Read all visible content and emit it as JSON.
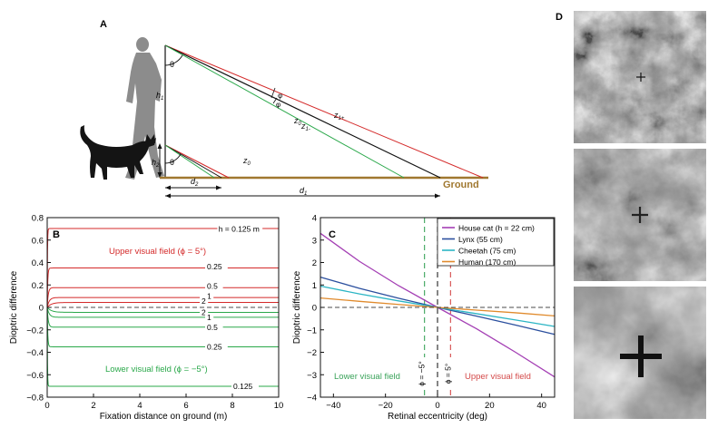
{
  "panel_labels": {
    "a": "A",
    "b": "B",
    "c": "C",
    "d": "D"
  },
  "diagram": {
    "theta": "θ",
    "phi_top": "φ",
    "phi_bottom": "φ",
    "h1": "h",
    "h1_sub": "1",
    "h2": "h",
    "h2_sub": "2",
    "z1plus": "z",
    "z1plus_sub": "1+",
    "z0": "z",
    "z0_sub": "0",
    "z1minus": "z",
    "z1minus_sub": "1-",
    "z0_cat": "z",
    "z0_cat_sub": "0",
    "d1": "d",
    "d1_sub": "1",
    "d2": "d",
    "d2_sub": "2",
    "ground": "Ground",
    "ground_color": "#a07830",
    "figures": [
      "human-silhouette-icon",
      "cat-silhouette-icon"
    ]
  },
  "chart_data": [
    {
      "id": "B",
      "type": "line",
      "xlabel": "Fixation distance on ground (m)",
      "ylabel": "Dioptric difference",
      "xlim": [
        0,
        10
      ],
      "ylim": [
        -0.8,
        0.8
      ],
      "xticks": [
        0,
        2,
        4,
        6,
        8,
        10
      ],
      "yticks": [
        0.8,
        0.6,
        0.4,
        0.2,
        0,
        -0.2,
        -0.4,
        -0.6,
        -0.8
      ],
      "ytick_labels": [
        "0.8",
        "0.6",
        "0.4",
        "0.2",
        "0",
        "−0.2",
        "−0.4",
        "−0.6",
        "−0.8"
      ],
      "upper_label": "Upper visual field (ϕ = 5°)",
      "lower_label": "Lower visual field (ϕ = −5°)",
      "h_label_prefix": "h = ",
      "h_label_units": " m",
      "upper_color": "#d42a2a",
      "lower_color": "#2aa84a",
      "upper_series": [
        {
          "h": 0.125,
          "label": "0.125",
          "plateau": 0.703
        },
        {
          "h": 0.25,
          "label": "0.25",
          "plateau": 0.351
        },
        {
          "h": 0.5,
          "label": "0.5",
          "plateau": 0.176
        },
        {
          "h": 1,
          "label": "1",
          "plateau": 0.088
        },
        {
          "h": 2,
          "label": "2",
          "plateau": 0.044
        }
      ],
      "lower_series": [
        {
          "h": 2,
          "label": "2",
          "plateau": -0.044
        },
        {
          "h": 1,
          "label": "1",
          "plateau": -0.088
        },
        {
          "h": 0.5,
          "label": "0.5",
          "plateau": -0.176
        },
        {
          "h": 0.25,
          "label": "0.25",
          "plateau": -0.351
        },
        {
          "h": 0.125,
          "label": "0.125",
          "plateau": -0.703
        }
      ]
    },
    {
      "id": "C",
      "type": "line",
      "xlabel": "Retinal eccentricity (deg)",
      "ylabel": "Dioptric difference",
      "xlim": [
        -45,
        45
      ],
      "ylim": [
        -4,
        4
      ],
      "xticks": [
        -40,
        -20,
        0,
        20,
        40
      ],
      "xtick_labels": [
        "−40",
        "−20",
        "0",
        "20",
        "40"
      ],
      "yticks": [
        4,
        3,
        2,
        1,
        0,
        -1,
        -2,
        -3,
        -4
      ],
      "ytick_labels": [
        "4",
        "3",
        "2",
        "1",
        "0",
        "−1",
        "−2",
        "−3",
        "−4"
      ],
      "legend_position": "top-right",
      "series": [
        {
          "name": "House cat (h = 22 cm)",
          "color": "#a43fb4",
          "x": [
            -45,
            -30,
            -15,
            0,
            15,
            30,
            45
          ],
          "y": [
            3.3,
            2.05,
            0.97,
            0,
            -0.95,
            -2.0,
            -3.1
          ]
        },
        {
          "name": "Lynx (55 cm)",
          "color": "#2b4f9e",
          "x": [
            -45,
            -30,
            -15,
            0,
            15,
            30,
            45
          ],
          "y": [
            1.35,
            0.85,
            0.41,
            0,
            -0.39,
            -0.79,
            -1.2
          ]
        },
        {
          "name": "Cheetah (75 cm)",
          "color": "#2bb5c4",
          "x": [
            -45,
            -30,
            -15,
            0,
            15,
            30,
            45
          ],
          "y": [
            0.95,
            0.6,
            0.29,
            0,
            -0.28,
            -0.56,
            -0.85
          ]
        },
        {
          "name": "Human (170 cm)",
          "color": "#e08a2c",
          "x": [
            -45,
            -30,
            -15,
            0,
            15,
            30,
            45
          ],
          "y": [
            0.42,
            0.27,
            0.13,
            0,
            -0.12,
            -0.24,
            -0.38
          ]
        }
      ],
      "vlines": [
        {
          "x": -5,
          "label": "ϕ = −5°",
          "color": "#3aa35a"
        },
        {
          "x": 0,
          "label": "",
          "color": "#222222"
        },
        {
          "x": 5,
          "label": "ϕ = 5°",
          "color": "#d44a4a"
        }
      ],
      "lower_field_label": "Lower visual field",
      "upper_field_label": "Upper visual field",
      "lower_field_color": "#3aa35a",
      "upper_field_color": "#d44a4a"
    }
  ],
  "noise_panels": {
    "crosses": [
      "small-cross-icon",
      "medium-cross-icon",
      "large-cross-icon"
    ]
  }
}
